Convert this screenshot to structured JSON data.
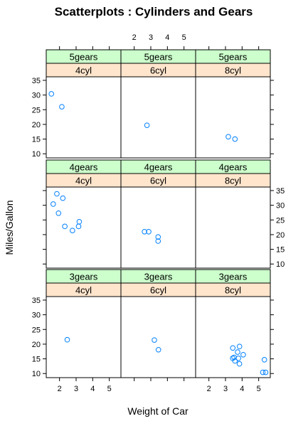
{
  "chart_data": {
    "type": "scatter",
    "title": "Scatterplots : Cylinders and Gears",
    "xlabel": "Weight of Car",
    "ylabel": "Miles/Gallon",
    "xlim": [
      1.2,
      5.7
    ],
    "ylim": [
      8.6,
      36.2
    ],
    "x_ticks": [
      2,
      3,
      4,
      5
    ],
    "y_ticks": [
      10,
      15,
      20,
      25,
      30,
      35
    ],
    "point_color": "#0080ff",
    "gear_strip_color": "#ccffcc",
    "cyl_strip_color": "#ffe5cc",
    "gear_labels": [
      "3gears",
      "4gears",
      "5gears"
    ],
    "cyl_labels": [
      "4cyl",
      "6cyl",
      "8cyl"
    ],
    "panels": [
      {
        "gear": "5gears",
        "cyl": "4cyl",
        "x": [
          1.51,
          2.14
        ],
        "y": [
          30.4,
          26.0
        ]
      },
      {
        "gear": "5gears",
        "cyl": "6cyl",
        "x": [
          2.77
        ],
        "y": [
          19.7
        ]
      },
      {
        "gear": "5gears",
        "cyl": "8cyl",
        "x": [
          3.17,
          3.57
        ],
        "y": [
          15.8,
          15.0
        ]
      },
      {
        "gear": "4gears",
        "cyl": "4cyl",
        "x": [
          1.62,
          1.84,
          2.2,
          2.32,
          3.19,
          3.15,
          2.78,
          1.94
        ],
        "y": [
          30.4,
          33.9,
          32.4,
          22.8,
          24.4,
          22.8,
          21.4,
          27.3
        ]
      },
      {
        "gear": "4gears",
        "cyl": "6cyl",
        "x": [
          2.62,
          2.875,
          3.44,
          3.44
        ],
        "y": [
          21.0,
          21.0,
          19.2,
          17.8
        ]
      },
      {
        "gear": "4gears",
        "cyl": "8cyl",
        "x": [],
        "y": []
      },
      {
        "gear": "3gears",
        "cyl": "4cyl",
        "x": [
          2.465
        ],
        "y": [
          21.5
        ]
      },
      {
        "gear": "3gears",
        "cyl": "6cyl",
        "x": [
          3.215,
          3.46
        ],
        "y": [
          21.4,
          18.1
        ]
      },
      {
        "gear": "3gears",
        "cyl": "8cyl",
        "x": [
          3.44,
          3.57,
          4.07,
          3.73,
          3.78,
          5.25,
          5.42,
          5.345,
          3.52,
          3.435,
          3.84,
          3.845
        ],
        "y": [
          18.7,
          14.3,
          16.4,
          17.3,
          15.2,
          10.4,
          10.4,
          14.7,
          15.5,
          15.2,
          13.3,
          19.2
        ]
      }
    ]
  }
}
